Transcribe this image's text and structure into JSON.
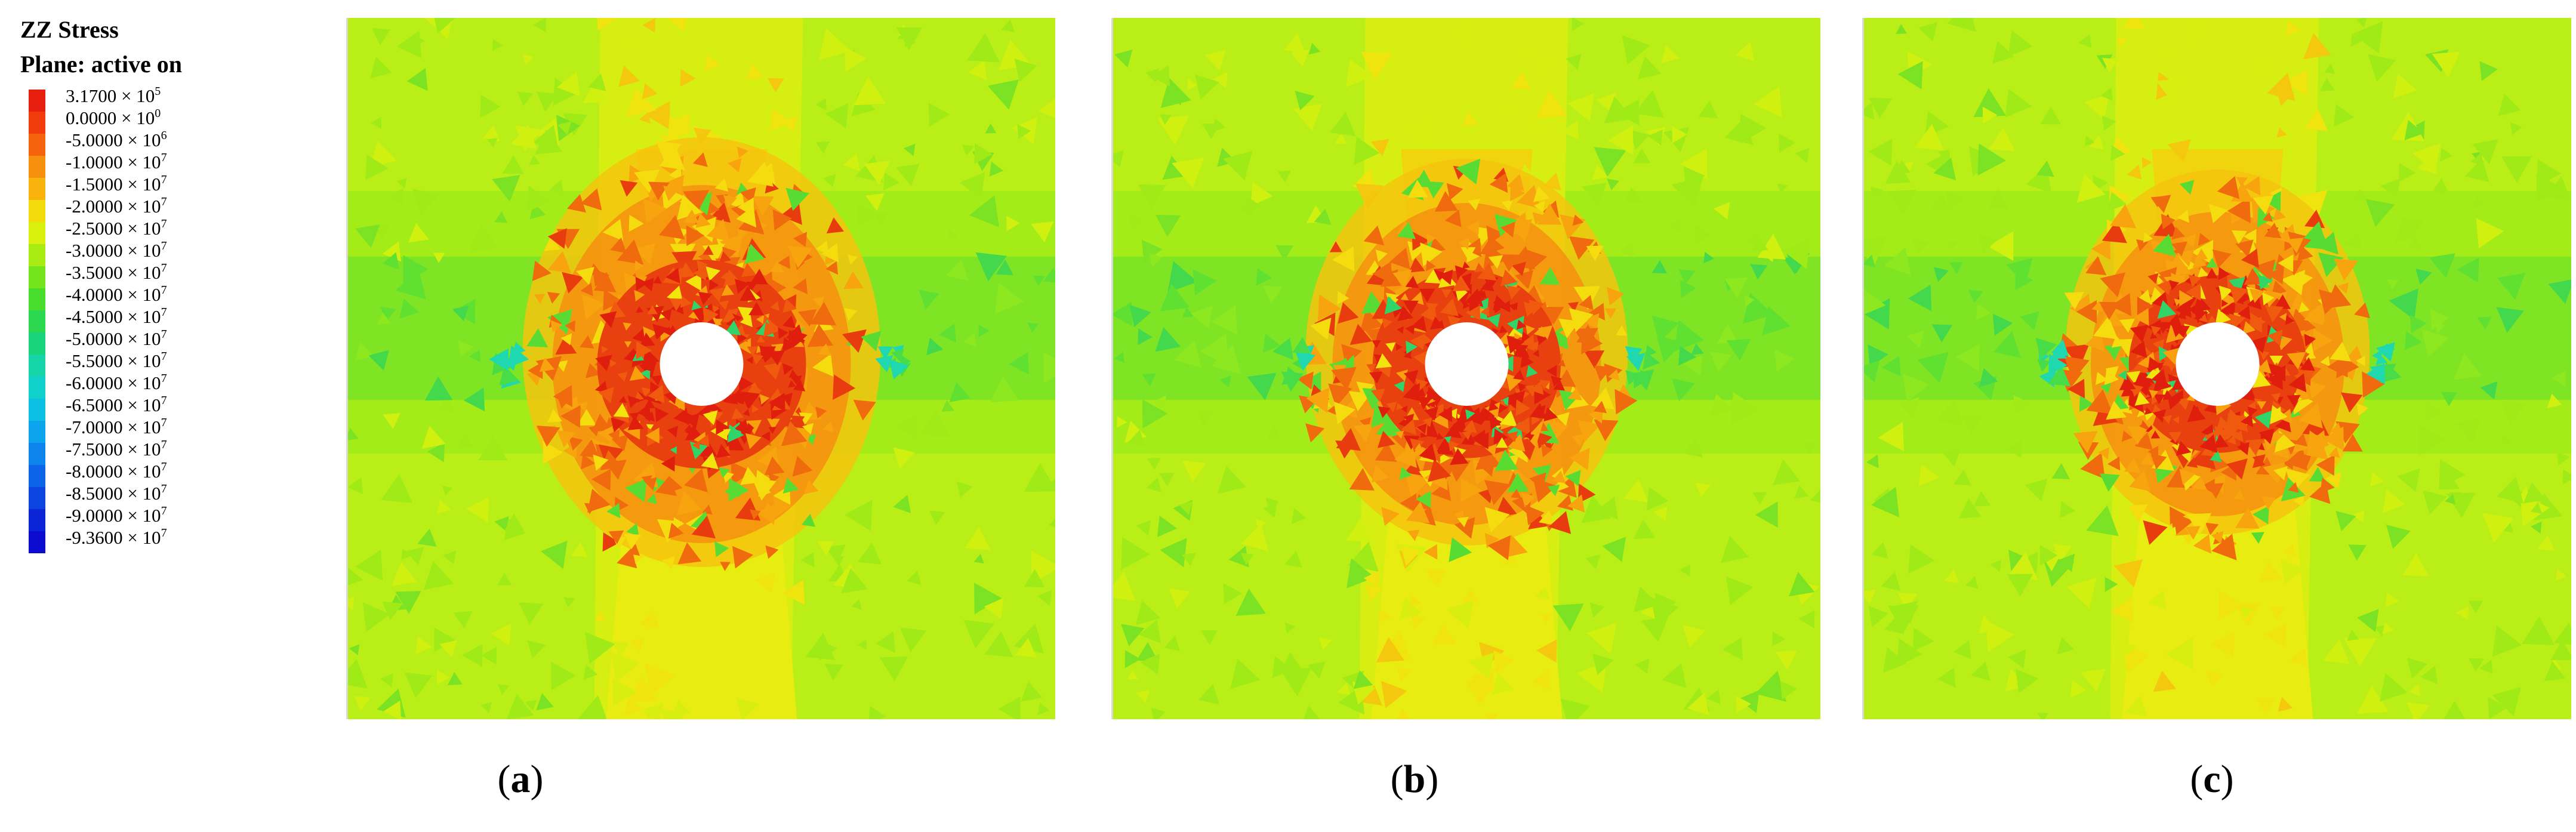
{
  "legend": {
    "title_line1": "ZZ Stress",
    "title_line2": "Plane: active on",
    "entries": [
      {
        "mantissa": "3.1700",
        "exp": "5",
        "color": "#e81e0e"
      },
      {
        "mantissa": "0.0000",
        "exp": "0",
        "color": "#f23c0c"
      },
      {
        "mantissa": "-5.0000",
        "exp": "6",
        "color": "#f5640c"
      },
      {
        "mantissa": "-1.0000",
        "exp": "7",
        "color": "#f7900c"
      },
      {
        "mantissa": "-1.5000",
        "exp": "7",
        "color": "#f8b40c"
      },
      {
        "mantissa": "-2.0000",
        "exp": "7",
        "color": "#f4dc0c"
      },
      {
        "mantissa": "-2.5000",
        "exp": "7",
        "color": "#d8f00c"
      },
      {
        "mantissa": "-3.0000",
        "exp": "7",
        "color": "#a8ec14"
      },
      {
        "mantissa": "-3.5000",
        "exp": "7",
        "color": "#74e41c"
      },
      {
        "mantissa": "-4.0000",
        "exp": "7",
        "color": "#48dc2c"
      },
      {
        "mantissa": "-4.5000",
        "exp": "7",
        "color": "#2cd850"
      },
      {
        "mantissa": "-5.0000",
        "exp": "7",
        "color": "#1ad47c"
      },
      {
        "mantissa": "-5.5000",
        "exp": "7",
        "color": "#14d4a8"
      },
      {
        "mantissa": "-6.0000",
        "exp": "7",
        "color": "#10d0cc"
      },
      {
        "mantissa": "-6.5000",
        "exp": "7",
        "color": "#0cc0e4"
      },
      {
        "mantissa": "-7.0000",
        "exp": "7",
        "color": "#0ca4ec"
      },
      {
        "mantissa": "-7.5000",
        "exp": "7",
        "color": "#0c84ec"
      },
      {
        "mantissa": "-8.0000",
        "exp": "7",
        "color": "#0c64e8"
      },
      {
        "mantissa": "-8.5000",
        "exp": "7",
        "color": "#0c44e0"
      },
      {
        "mantissa": "-9.0000",
        "exp": "7",
        "color": "#0c24d8"
      },
      {
        "mantissa": "-9.3600",
        "exp": "7",
        "color": "#0c0cd0"
      }
    ],
    "times_sign": "×",
    "base": "10"
  },
  "panels": [
    {
      "id": "a",
      "caption": "a",
      "outer_ring_scale": 1.0
    },
    {
      "id": "b",
      "caption": "b",
      "outer_ring_scale": 0.9
    },
    {
      "id": "c",
      "caption": "c",
      "outer_ring_scale": 0.85
    }
  ],
  "colors": {
    "background_field": "#b9ef16",
    "band_green": "#7ee424",
    "concentration_red": "#e8400e",
    "shoulder_orange": "#f59410",
    "wake_yellow": "#e8ec10",
    "hole": "#ffffff"
  }
}
